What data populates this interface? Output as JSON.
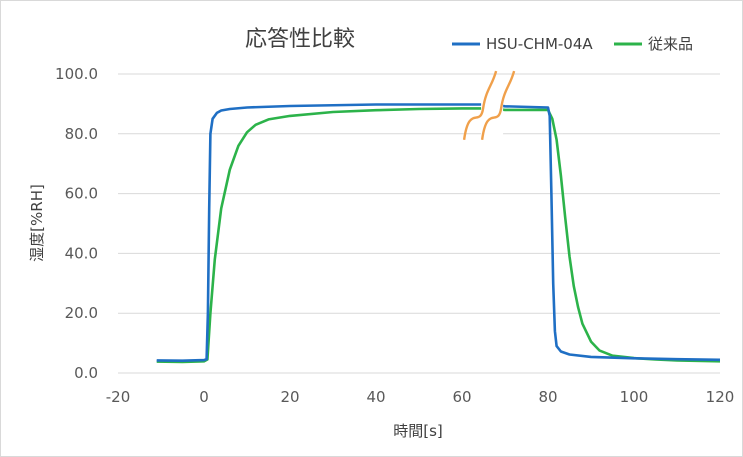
{
  "chart_data": {
    "type": "line",
    "title": "応答性比較",
    "xlabel": "時間[s]",
    "ylabel": "湿度[%RH]",
    "xlim": [
      -20,
      120
    ],
    "ylim": [
      0,
      100
    ],
    "x_ticks": [
      -20,
      0,
      20,
      40,
      60,
      80,
      100,
      120
    ],
    "y_ticks": [
      "0.0",
      "20.0",
      "40.0",
      "60.0",
      "80.0",
      "100.0"
    ],
    "grid": true,
    "legend_position": "top-right",
    "axis_break_x": 67,
    "series": [
      {
        "name": "HSU-CHM-04A",
        "color": "#1f6fc4",
        "x": [
          -11,
          -5,
          0,
          0.6,
          0.9,
          1.2,
          1.5,
          2,
          3,
          4,
          6,
          10,
          20,
          40,
          60,
          67,
          70,
          80,
          80.4,
          80.8,
          81.2,
          81.6,
          82,
          83,
          85,
          90,
          100,
          110,
          120
        ],
        "y": [
          4.2,
          4.1,
          4.3,
          4.6,
          20,
          55,
          80,
          85,
          87,
          87.8,
          88.3,
          88.8,
          89.3,
          89.8,
          89.8,
          89.8,
          89.2,
          88.8,
          86,
          60,
          30,
          14,
          9,
          7.2,
          6.2,
          5.4,
          4.9,
          4.6,
          4.4
        ]
      },
      {
        "name": "従来品",
        "color": "#2cb34a",
        "x": [
          -11,
          -5,
          0,
          0.8,
          1.5,
          2.5,
          4,
          6,
          8,
          10,
          12,
          15,
          20,
          30,
          40,
          50,
          60,
          67,
          70,
          80,
          81,
          82,
          83,
          84,
          85,
          86,
          87,
          88,
          90,
          92,
          95,
          100,
          105,
          110,
          120
        ],
        "y": [
          3.8,
          3.7,
          3.9,
          4.5,
          20,
          38,
          55,
          68,
          76,
          80.5,
          83,
          84.8,
          86,
          87.3,
          87.9,
          88.3,
          88.5,
          88.5,
          88,
          88,
          85,
          78,
          66,
          52,
          39,
          29,
          22,
          16.5,
          10.5,
          7.5,
          5.8,
          5.0,
          4.5,
          4.2,
          3.9
        ]
      }
    ]
  }
}
